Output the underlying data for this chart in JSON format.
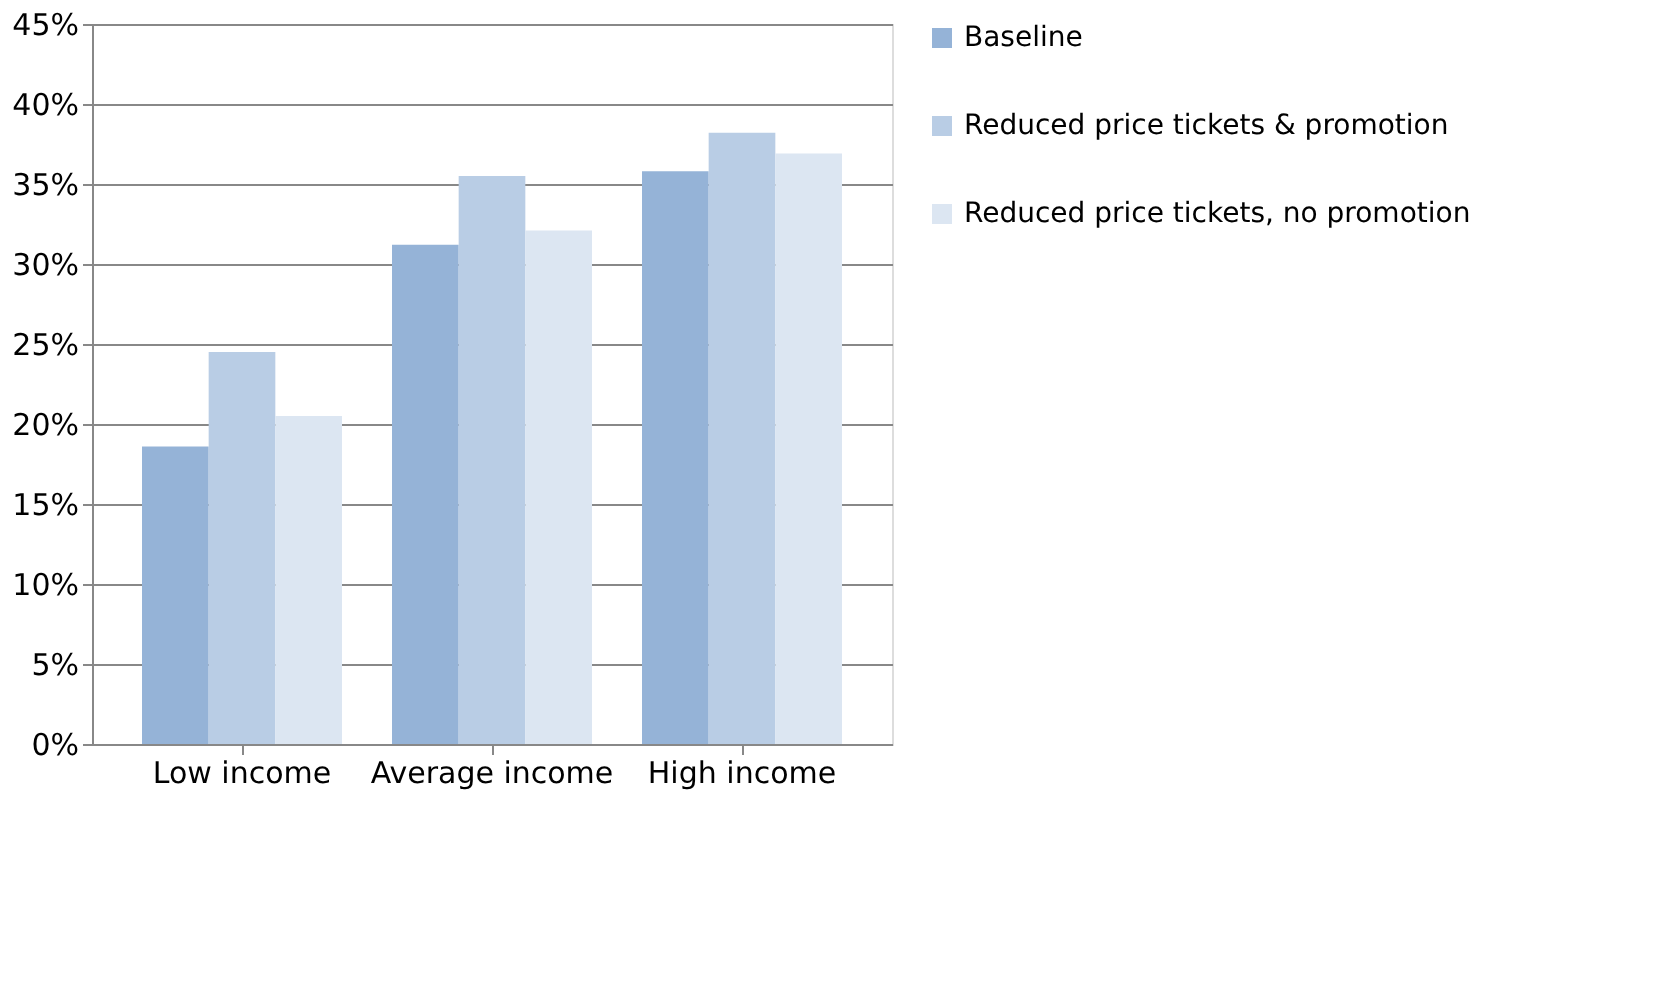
{
  "chart_data": {
    "type": "bar",
    "categories": [
      "Low income",
      "Average income",
      "High income"
    ],
    "series": [
      {
        "name": "Baseline",
        "color": "#95b3d7",
        "values": [
          18.6,
          31.2,
          35.8
        ]
      },
      {
        "name": "Reduced price tickets & promotion",
        "color": "#b9cde5",
        "values": [
          24.5,
          35.5,
          38.2
        ]
      },
      {
        "name": "Reduced price tickets, no promotion",
        "color": "#dce6f2",
        "values": [
          20.5,
          32.1,
          36.9
        ]
      }
    ],
    "ylim": [
      0,
      45
    ],
    "yticks": [
      {
        "value": 0,
        "label": "0%"
      },
      {
        "value": 5,
        "label": "5%"
      },
      {
        "value": 10,
        "label": "10%"
      },
      {
        "value": 15,
        "label": "15%"
      },
      {
        "value": 20,
        "label": "20%"
      },
      {
        "value": 25,
        "label": "25%"
      },
      {
        "value": 30,
        "label": "30%"
      },
      {
        "value": 35,
        "label": "35%"
      },
      {
        "value": 40,
        "label": "40%"
      },
      {
        "value": 45,
        "label": "45%"
      }
    ],
    "grid": "y",
    "legend": "right"
  }
}
